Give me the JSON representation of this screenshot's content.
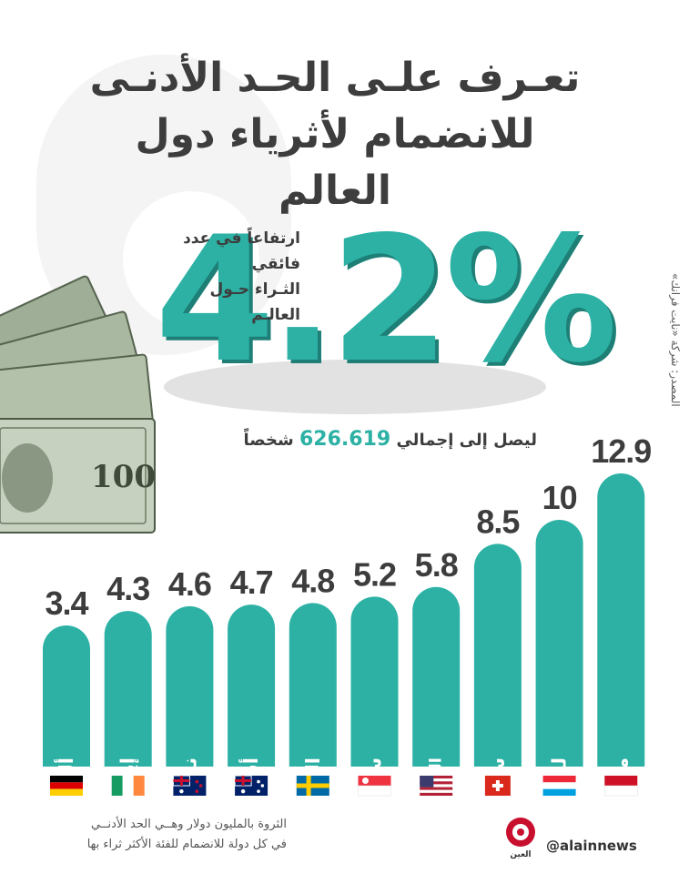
{
  "title_line1": "تعـرف علـى الحـد الأدنـى",
  "title_line2": "للانضمام لأثرياء دول العالم",
  "headline": {
    "value": "4.2%",
    "caption_line1": "ارتفاعاً في عدد فائقي",
    "caption_line2": "الثـراء حـول العالـم"
  },
  "reach": {
    "prefix": "ليصل إلى إجمالي",
    "count": "626.619",
    "suffix": "شخصاً"
  },
  "source": "المصدر: شركة «نايت فرانك»",
  "note_line1": "الثروة بالمليون دولار وهــي الحد الأدنــي",
  "note_line2": "في كل دولة للانضمام للفئة الأكثر ثراء بها",
  "handle": "@alainnews",
  "logo_text": "العين",
  "colors": {
    "teal": "#2cb1a4",
    "teal_dark": "#1d7f76",
    "text": "#3d3d3d"
  },
  "chart_data": {
    "type": "bar",
    "categories": [
      "ألمانيا",
      "إيرلندا",
      "نيوزيلندا",
      "أستراليا",
      "السويد",
      "سنغافورة",
      "الولايات المتحدة",
      "سويسرا",
      "لوكسمبورغ",
      "موناكو"
    ],
    "values": [
      3.4,
      4.3,
      4.6,
      4.7,
      4.8,
      5.2,
      5.8,
      8.5,
      10,
      12.9
    ],
    "value_labels": [
      "3.4",
      "4.3",
      "4.6",
      "4.7",
      "4.8",
      "5.2",
      "5.8",
      "8.5",
      "10",
      "12.9"
    ],
    "flags": [
      "germany-flag",
      "ireland-flag",
      "new-zealand-flag",
      "australia-flag",
      "sweden-flag",
      "singapore-flag",
      "usa-flag",
      "switzerland-flag",
      "luxembourg-flag",
      "monaco-flag"
    ],
    "bar_color": "#2cb1a4",
    "title": "",
    "xlabel": "",
    "ylabel": ""
  }
}
